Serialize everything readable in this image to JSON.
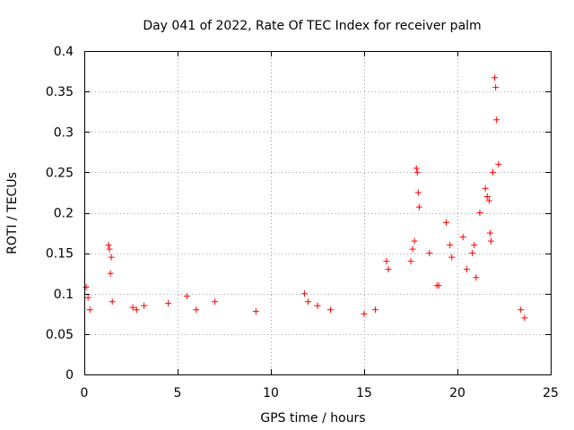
{
  "chart_data": {
    "type": "scatter",
    "title": "Day 041 of 2022, Rate Of TEC Index for receiver palm",
    "xlabel": "GPS time / hours",
    "ylabel": "ROTI / TECUs",
    "xlim": [
      0,
      25
    ],
    "ylim": [
      0,
      0.4
    ],
    "xticks": [
      0,
      5,
      10,
      15,
      20,
      25
    ],
    "xtick_labels": [
      "0",
      "5",
      "10",
      "15",
      "20",
      "25"
    ],
    "yticks": [
      0,
      0.05,
      0.1,
      0.15,
      0.2,
      0.25,
      0.3,
      0.35,
      0.4
    ],
    "ytick_labels": [
      "0",
      "0.05",
      "0.1",
      "0.15",
      "0.2",
      "0.25",
      "0.3",
      "0.35",
      "0.4"
    ],
    "grid": true,
    "marker": "+",
    "color": "#ff0000",
    "series": [
      {
        "name": "ROTI",
        "x": [
          0.1,
          0.2,
          0.3,
          1.3,
          1.35,
          1.4,
          1.45,
          1.5,
          2.6,
          2.8,
          3.2,
          4.5,
          5.5,
          6.0,
          7.0,
          9.2,
          11.8,
          12.0,
          12.5,
          13.2,
          15.0,
          15.6,
          16.2,
          16.3,
          17.5,
          17.6,
          17.7,
          17.8,
          17.85,
          17.9,
          17.95,
          18.5,
          18.9,
          19.0,
          19.4,
          19.6,
          19.7,
          20.3,
          20.5,
          20.8,
          20.9,
          21.0,
          21.2,
          21.5,
          21.6,
          21.7,
          21.75,
          21.8,
          21.9,
          22.0,
          22.05,
          22.1,
          22.2,
          23.4,
          23.6
        ],
        "y": [
          0.108,
          0.095,
          0.08,
          0.16,
          0.155,
          0.125,
          0.145,
          0.09,
          0.083,
          0.08,
          0.085,
          0.088,
          0.097,
          0.08,
          0.09,
          0.078,
          0.1,
          0.09,
          0.085,
          0.08,
          0.075,
          0.08,
          0.14,
          0.13,
          0.14,
          0.155,
          0.165,
          0.255,
          0.25,
          0.225,
          0.207,
          0.15,
          0.11,
          0.11,
          0.188,
          0.16,
          0.145,
          0.17,
          0.13,
          0.15,
          0.16,
          0.12,
          0.2,
          0.23,
          0.22,
          0.215,
          0.175,
          0.165,
          0.25,
          0.367,
          0.355,
          0.315,
          0.26,
          0.08,
          0.07
        ]
      }
    ]
  }
}
